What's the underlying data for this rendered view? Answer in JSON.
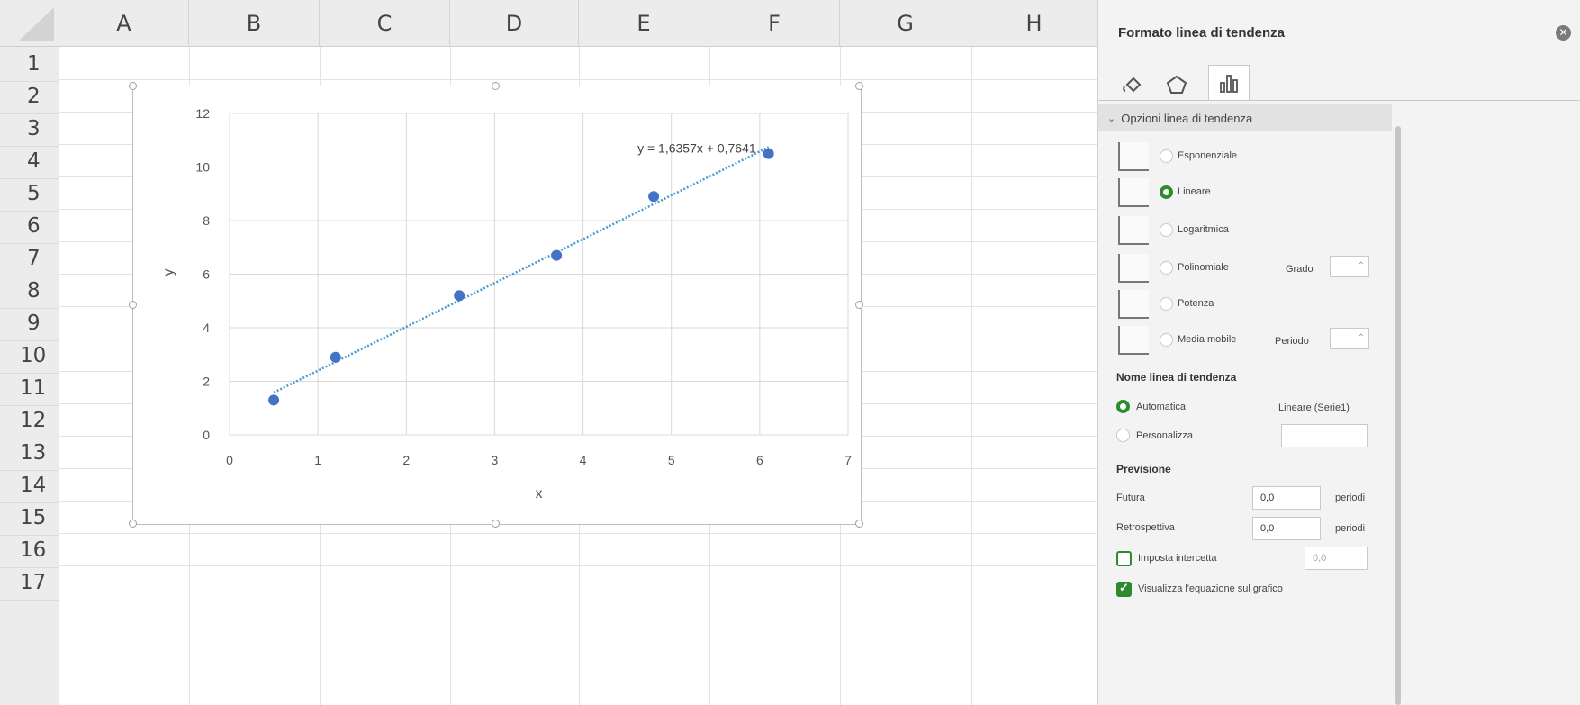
{
  "sheet": {
    "columns": [
      "A",
      "B",
      "C",
      "D",
      "E",
      "F",
      "G",
      "H"
    ],
    "rows": [
      "1",
      "2",
      "3",
      "4",
      "5",
      "6",
      "7",
      "8",
      "9",
      "10",
      "11",
      "12",
      "13",
      "14",
      "15",
      "16",
      "17"
    ]
  },
  "chart_data": {
    "type": "scatter",
    "title": "",
    "xlabel": "x",
    "ylabel": "y",
    "xlim": [
      0,
      7
    ],
    "ylim": [
      0,
      12
    ],
    "xticks": [
      "0",
      "1",
      "2",
      "3",
      "4",
      "5",
      "6",
      "7"
    ],
    "yticks": [
      "0",
      "2",
      "4",
      "6",
      "8",
      "10",
      "12"
    ],
    "grid": true,
    "series": [
      {
        "x": [
          0.5,
          1.2,
          2.6,
          3.7,
          4.8,
          6.1
        ],
        "y": [
          1.3,
          2.9,
          5.2,
          6.7,
          8.9,
          10.5
        ],
        "color": "#4472c4"
      }
    ],
    "trendline": {
      "type": "linear",
      "slope": 1.6357,
      "intercept": 0.7641,
      "x_range": [
        0.5,
        6.1
      ],
      "equation_label": "y = 1,6357x + 0,7641",
      "color": "#4a9bd0"
    }
  },
  "panel": {
    "title": "Formato linea di tendenza",
    "tabs": [
      {
        "icon": "paint-bucket-icon"
      },
      {
        "icon": "pentagon-icon"
      },
      {
        "icon": "bar-chart-icon"
      }
    ],
    "section": "Opzioni linea di tendenza",
    "types": [
      {
        "label": "Esponenziale",
        "selected": false
      },
      {
        "label": "Lineare",
        "selected": true
      },
      {
        "label": "Logaritmica",
        "selected": false
      },
      {
        "label": "Polinomiale",
        "selected": false
      },
      {
        "label": "Potenza",
        "selected": false
      },
      {
        "label": "Media mobile",
        "selected": false
      }
    ],
    "grado_label": "Grado",
    "periodo_label": "Periodo",
    "name_section": "Nome linea di tendenza",
    "name_auto": "Automatica",
    "name_auto_value": "Lineare (Serie1)",
    "name_custom": "Personalizza",
    "forecast_section": "Previsione",
    "forward_label": "Futura",
    "forward_value": "0,0",
    "backward_label": "Retrospettiva",
    "backward_value": "0,0",
    "periods_unit": "periodi",
    "intercept_label": "Imposta intercetta",
    "intercept_value": "0,0",
    "display_equation_label": "Visualizza l'equazione sul grafico",
    "accent_color": "#2d8a2d"
  }
}
